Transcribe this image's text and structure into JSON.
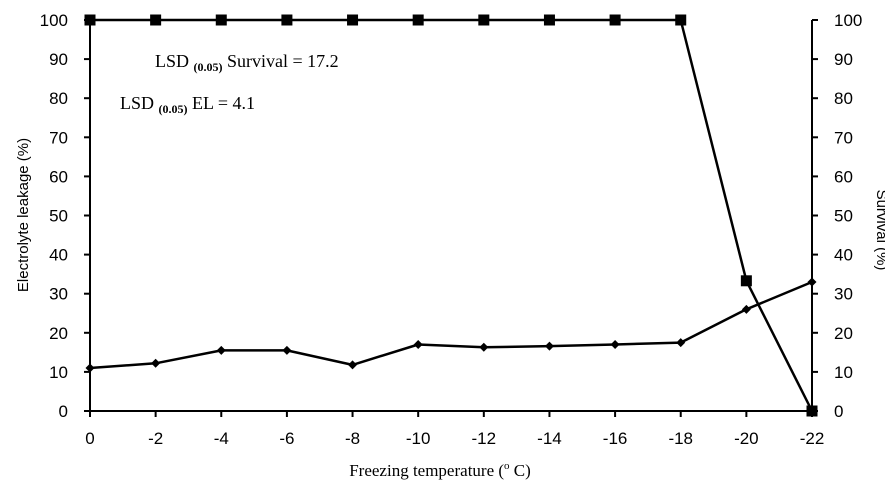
{
  "chart_data": {
    "type": "line",
    "title": "",
    "xlabel_main": "Freezing temperature (",
    "xlabel_sup": "o",
    "xlabel_end": " C)",
    "ylabel_left": "Electrolyte leakage (%)",
    "ylabel_right": "Survival (%)",
    "categories": [
      "0",
      "-2",
      "-4",
      "-6",
      "-8",
      "-10",
      "-12",
      "-14",
      "-16",
      "-18",
      "-20",
      "-22"
    ],
    "yticks": [
      "0",
      "10",
      "20",
      "30",
      "40",
      "50",
      "60",
      "70",
      "80",
      "90",
      "100"
    ],
    "ylim_left": [
      0,
      100
    ],
    "ylim_right": [
      0,
      100
    ],
    "series": [
      {
        "key": "el",
        "axis": "left",
        "marker": "diamond",
        "values": [
          11,
          12.2,
          15.5,
          15.5,
          11.8,
          17,
          16.3,
          16.6,
          17,
          17.5,
          26,
          33
        ]
      },
      {
        "key": "survival",
        "axis": "right",
        "marker": "square",
        "values": [
          100,
          100,
          100,
          100,
          100,
          100,
          100,
          100,
          100,
          100,
          33.3,
          0
        ]
      }
    ],
    "annotations": [
      {
        "prefix": "LSD ",
        "sub": "(0.05)",
        "suffix": " Survival = 17.2"
      },
      {
        "prefix": "LSD ",
        "sub": "(0.05)",
        "suffix": " EL = 4.1"
      }
    ],
    "grid": false,
    "colors": {
      "line": "#000000"
    }
  }
}
